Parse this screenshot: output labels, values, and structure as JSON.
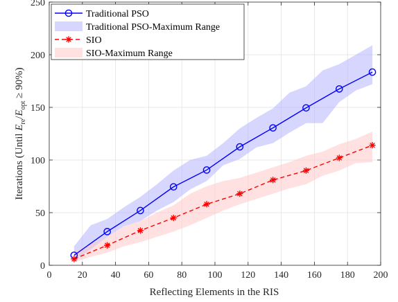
{
  "chart_data": {
    "type": "line",
    "xlabel": "Reflecting Elements in the RIS",
    "ylabel": {
      "prefix": "Iterations (Until ",
      "e1": "E",
      "sub1": "re",
      "slash": "/",
      "e2": "E",
      "sub2": "opt",
      "suffix": " ≥ 90%)"
    },
    "xlim": [
      0,
      200
    ],
    "ylim": [
      0,
      250
    ],
    "xticks": [
      0,
      20,
      40,
      60,
      80,
      100,
      120,
      140,
      160,
      180,
      200
    ],
    "yticks": [
      0,
      50,
      100,
      150,
      200,
      250
    ],
    "xtick_labels": [
      "0",
      "20",
      "40",
      "60",
      "80",
      "100",
      "120",
      "140",
      "160",
      "180",
      "200"
    ],
    "ytick_labels": [
      "0",
      "50",
      "100",
      "150",
      "200",
      "250"
    ],
    "grid": true,
    "legend_position": "top-left",
    "series": [
      {
        "name": "Traditional PSO",
        "kind": "line",
        "color": "#0000ff",
        "marker": "circle",
        "line_style": "solid",
        "x": [
          15,
          35,
          55,
          75,
          95,
          115,
          135,
          155,
          175,
          195
        ],
        "values": [
          9.5,
          32,
          52,
          74.5,
          90.5,
          112.5,
          130.5,
          149.5,
          167.5,
          183.5
        ]
      },
      {
        "name": "Traditional PSO-Maximum Range",
        "kind": "band",
        "color": "#b4b4ff",
        "x": [
          15,
          25,
          35,
          45,
          55,
          65,
          75,
          85,
          95,
          105,
          115,
          125,
          135,
          145,
          155,
          165,
          175,
          185,
          195
        ],
        "upper": [
          18,
          38,
          44,
          55,
          65,
          77,
          90,
          100,
          104,
          116,
          130,
          140,
          149,
          164,
          170,
          185,
          191,
          200,
          209
        ],
        "lower": [
          5,
          15,
          27,
          37,
          42,
          52,
          60,
          72,
          80,
          95,
          101,
          112,
          116,
          126,
          135,
          135,
          155,
          166,
          172
        ]
      },
      {
        "name": "SIO",
        "kind": "line",
        "color": "#ff0000",
        "marker": "asterisk",
        "line_style": "dashed",
        "x": [
          15,
          35,
          55,
          75,
          95,
          115,
          135,
          155,
          175,
          195
        ],
        "values": [
          6,
          19,
          33,
          45,
          58,
          68,
          81,
          90,
          102,
          114
        ]
      },
      {
        "name": "SIO-Maximum Range",
        "kind": "band",
        "color": "#ffc8c8",
        "x": [
          15,
          25,
          35,
          45,
          55,
          65,
          75,
          85,
          95,
          105,
          115,
          125,
          135,
          145,
          155,
          165,
          175,
          185,
          195
        ],
        "upper": [
          13,
          20,
          27,
          37,
          42,
          50,
          57,
          68,
          75,
          80,
          83,
          88,
          93,
          98,
          104,
          108,
          115,
          120,
          127
        ],
        "lower": [
          3,
          8,
          12,
          18,
          22,
          27,
          32,
          38,
          45,
          52,
          58,
          63,
          68,
          73,
          77,
          85,
          90,
          97,
          98
        ]
      }
    ]
  }
}
